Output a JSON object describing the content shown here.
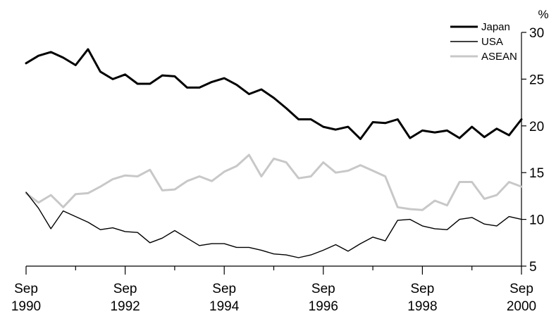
{
  "chart_data": {
    "type": "line",
    "yunit": "%",
    "ylim": [
      5,
      30
    ],
    "yticks": [
      5,
      10,
      15,
      20,
      25,
      30
    ],
    "xlim": [
      "1990-09",
      "2000-09"
    ],
    "xticks": [
      {
        "month": "Sep",
        "year": "1990"
      },
      {
        "month": "Sep",
        "year": "1992"
      },
      {
        "month": "Sep",
        "year": "1994"
      },
      {
        "month": "Sep",
        "year": "1996"
      },
      {
        "month": "Sep",
        "year": "1998"
      },
      {
        "month": "Sep",
        "year": "2000"
      }
    ],
    "legend_position": "top-right",
    "grid": false,
    "x": [
      "1990-09",
      "1990-12",
      "1991-03",
      "1991-06",
      "1991-09",
      "1991-12",
      "1992-03",
      "1992-06",
      "1992-09",
      "1992-12",
      "1993-03",
      "1993-06",
      "1993-09",
      "1993-12",
      "1994-03",
      "1994-06",
      "1994-09",
      "1994-12",
      "1995-03",
      "1995-06",
      "1995-09",
      "1995-12",
      "1996-03",
      "1996-06",
      "1996-09",
      "1996-12",
      "1997-03",
      "1997-06",
      "1997-09",
      "1997-12",
      "1998-03",
      "1998-06",
      "1998-09",
      "1998-12",
      "1999-03",
      "1999-06",
      "1999-09",
      "1999-12",
      "2000-03",
      "2000-06",
      "2000-09"
    ],
    "series": [
      {
        "name": "Japan",
        "color": "#000000",
        "width": 3,
        "values": [
          26.7,
          27.5,
          27.9,
          27.3,
          26.5,
          28.2,
          25.8,
          25.0,
          25.5,
          24.5,
          24.5,
          25.4,
          25.3,
          24.1,
          24.1,
          24.7,
          25.1,
          24.4,
          23.4,
          23.9,
          23.0,
          21.9,
          20.7,
          20.7,
          19.9,
          19.6,
          19.9,
          18.6,
          20.4,
          20.3,
          20.7,
          18.7,
          19.5,
          19.3,
          19.5,
          18.7,
          19.9,
          18.8,
          19.7,
          19.0,
          20.7
        ]
      },
      {
        "name": "USA",
        "color": "#000000",
        "width": 1.4,
        "values": [
          12.9,
          11.2,
          9.0,
          10.9,
          10.3,
          9.7,
          8.9,
          9.1,
          8.7,
          8.6,
          7.5,
          8.0,
          8.8,
          8.0,
          7.2,
          7.4,
          7.4,
          7.0,
          7.0,
          6.7,
          6.3,
          6.2,
          5.9,
          6.2,
          6.7,
          7.3,
          6.6,
          7.4,
          8.1,
          7.7,
          9.9,
          10.0,
          9.3,
          9.0,
          8.9,
          10.0,
          10.2,
          9.5,
          9.3,
          10.3,
          10.0
        ]
      },
      {
        "name": "ASEAN",
        "color": "#c8c8c8",
        "width": 3,
        "values": [
          12.8,
          11.8,
          12.6,
          11.3,
          12.7,
          12.8,
          13.5,
          14.3,
          14.7,
          14.6,
          15.3,
          13.1,
          13.2,
          14.1,
          14.6,
          14.1,
          15.1,
          15.7,
          16.9,
          14.6,
          16.5,
          16.1,
          14.4,
          14.6,
          16.1,
          15.0,
          15.2,
          15.8,
          15.2,
          14.6,
          11.3,
          11.1,
          11.0,
          12.0,
          11.5,
          14.0,
          14.0,
          12.2,
          12.6,
          14.0,
          13.5
        ]
      }
    ]
  }
}
